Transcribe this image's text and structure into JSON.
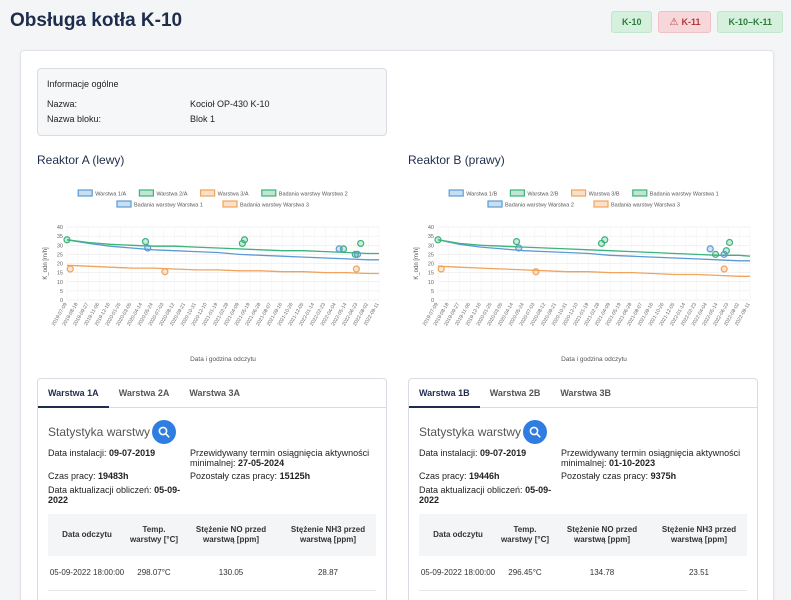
{
  "page_title": "Obsługa kotła K-10",
  "badges": [
    {
      "label": "K-10",
      "status": "ok",
      "color": "#2e7d3e"
    },
    {
      "label": "K-11",
      "status": "warning",
      "color": "#b23a3a"
    },
    {
      "label": "K-10–K-11",
      "status": "ok",
      "color": "#2e7d3e"
    }
  ],
  "info": {
    "title": "Informacje ogólne",
    "name_label": "Nazwa:",
    "name_value": "Kocioł OP-430 K-10",
    "block_label": "Nazwa bloku:",
    "block_value": "Blok 1"
  },
  "reactors": [
    {
      "title": "Reaktor A (lewy)",
      "chart_data": {
        "type": "line",
        "legend": [
          "Warstwa 1/A",
          "Warstwa 2/A",
          "Warstwa 3/A",
          "Badania warstwy Warstwa 2",
          "Badania warstwy Warstwa 1",
          "Badania warstwy Warstwa 3"
        ],
        "legend_placement": "top",
        "xlabel": "Data i godzina odczytu",
        "ylabel": "K_odn [m/h]",
        "ylim": [
          0,
          40
        ],
        "y_ticks": [
          0,
          5,
          10,
          15,
          20,
          25,
          30,
          35,
          40
        ],
        "grid": true,
        "x_ticks": [
          "2019-07-09",
          "2019-08-18",
          "2019-09-27",
          "2019-11-06",
          "2019-12-16",
          "2020-01-25",
          "2020-03-05",
          "2020-04-14",
          "2020-05-24",
          "2020-07-03",
          "2020-08-12",
          "2020-09-21",
          "2020-10-31",
          "2020-12-10",
          "2021-01-19",
          "2021-02-28",
          "2021-04-09",
          "2021-05-19",
          "2021-06-28",
          "2021-08-07",
          "2021-09-16",
          "2021-10-26",
          "2021-12-05",
          "2022-01-14",
          "2022-02-23",
          "2022-04-04",
          "2022-05-14",
          "2022-06-23",
          "2022-08-02",
          "2022-09-11"
        ],
        "colors": {
          "s1": "#5b9bd5",
          "s2": "#3cb37a",
          "s3": "#f0a35c"
        },
        "series": [
          {
            "name": "Warstwa 1/A",
            "color": "#5b9bd5",
            "x": [
              0,
              2,
              4,
              6,
              8,
              10,
              12,
              14,
              16,
              18,
              20,
              22,
              24,
              26,
              28,
              29
            ],
            "values": [
              33,
              31,
              29.5,
              28.5,
              27.5,
              27,
              26.5,
              26,
              25,
              24.5,
              24,
              23.5,
              23,
              22.5,
              22,
              22
            ]
          },
          {
            "name": "Warstwa 2/A",
            "color": "#3cb37a",
            "x": [
              0,
              2,
              4,
              6,
              8,
              10,
              12,
              14,
              16,
              18,
              20,
              22,
              24,
              26,
              28,
              29
            ],
            "values": [
              33,
              31.5,
              30.5,
              30,
              29.5,
              29.5,
              29,
              28.5,
              28,
              27.5,
              27,
              27,
              26.5,
              26,
              25.5,
              25.5
            ]
          },
          {
            "name": "Warstwa 3/A",
            "color": "#f0a35c",
            "x": [
              0,
              2,
              4,
              6,
              8,
              10,
              12,
              14,
              16,
              18,
              20,
              22,
              24,
              26,
              28,
              29
            ],
            "values": [
              19,
              18.5,
              18,
              17.5,
              17.5,
              17,
              16.5,
              16.5,
              16,
              16,
              15.5,
              15.5,
              15,
              15,
              14.5,
              14.5
            ]
          }
        ],
        "points": [
          {
            "series": "Badania warstwy Warstwa 2",
            "color": "#3cb37a",
            "x": [
              0,
              7.3,
              16.3,
              16.5,
              25.7,
              26.8,
              27.3
            ],
            "values": [
              33,
              32,
              31,
              33,
              28,
              25,
              31
            ]
          },
          {
            "series": "Badania warstwy Warstwa 1",
            "color": "#5b9bd5",
            "x": [
              7.5,
              25.3,
              27
            ],
            "values": [
              28.5,
              28,
              25
            ]
          },
          {
            "series": "Badania warstwy Warstwa 3",
            "color": "#f0a35c",
            "x": [
              0.3,
              9.1,
              26.9
            ],
            "values": [
              17,
              15.5,
              17
            ]
          }
        ]
      },
      "tabs": [
        "Warstwa 1A",
        "Warstwa 2A",
        "Warstwa 3A"
      ],
      "active_tab": 0,
      "stat_title": "Statystyka warstwy",
      "install_label": "Data instalacji:",
      "install_value": "09-07-2019",
      "predicted_label": "Przewidywany termin osiągnięcia aktywności minimalnej:",
      "predicted_value": "27-05-2024",
      "worktime_label": "Czas pracy:",
      "worktime_value": "19483h",
      "remaining_label": "Pozostały czas pracy:",
      "remaining_value": "15125h",
      "update_label": "Data aktualizacji obliczeń:",
      "update_value": "05-09-2022",
      "table": {
        "headers": [
          "Data odczytu",
          "Temp. warstwy [°C]",
          "Stężenie NO przed warstwą [ppm]",
          "Stężenie NH3 przed warstwą [ppm]"
        ],
        "rows": [
          [
            "05-09-2022 18:00:00",
            "298.07°C",
            "130.05",
            "28.87"
          ]
        ]
      }
    },
    {
      "title": "Reaktor B (prawy)",
      "chart_data": {
        "type": "line",
        "legend": [
          "Warstwa 1/B",
          "Warstwa 2/B",
          "Warstwa 3/B",
          "Badania warstwy Warstwa 1",
          "Badania warstwy Warstwa 2",
          "Badania warstwy Warstwa 3"
        ],
        "legend_placement": "top",
        "xlabel": "Data i godzina odczytu",
        "ylabel": "K_odn [m/h]",
        "ylim": [
          0,
          40
        ],
        "y_ticks": [
          0,
          5,
          10,
          15,
          20,
          25,
          30,
          35,
          40
        ],
        "grid": true,
        "x_ticks": [
          "2019-07-09",
          "2019-08-18",
          "2019-09-27",
          "2019-11-06",
          "2019-12-16",
          "2020-01-25",
          "2020-03-05",
          "2020-04-14",
          "2020-05-24",
          "2020-07-03",
          "2020-08-12",
          "2020-09-21",
          "2020-10-31",
          "2020-12-10",
          "2021-01-19",
          "2021-02-28",
          "2021-04-09",
          "2021-05-19",
          "2021-06-28",
          "2021-08-07",
          "2021-09-16",
          "2021-10-26",
          "2021-12-05",
          "2022-01-14",
          "2022-02-23",
          "2022-04-04",
          "2022-05-14",
          "2022-06-23",
          "2022-08-02",
          "2022-09-11"
        ],
        "colors": {
          "s1": "#5b9bd5",
          "s2": "#3cb37a",
          "s3": "#f0a35c"
        },
        "series": [
          {
            "name": "Warstwa 1/B",
            "color": "#5b9bd5",
            "x": [
              0,
              2,
              4,
              6,
              8,
              10,
              12,
              14,
              16,
              18,
              20,
              22,
              24,
              26,
              28,
              29
            ],
            "values": [
              33,
              30.5,
              29,
              28,
              27,
              26.5,
              26,
              25.5,
              24.5,
              24,
              23.5,
              23,
              22.5,
              22,
              21.5,
              21.5
            ]
          },
          {
            "name": "Warstwa 2/B",
            "color": "#3cb37a",
            "x": [
              0,
              2,
              4,
              6,
              8,
              10,
              12,
              14,
              16,
              18,
              20,
              22,
              24,
              26,
              28,
              29
            ],
            "values": [
              33,
              31,
              30,
              29.5,
              29,
              28.5,
              28,
              27.5,
              27,
              26.5,
              26,
              25.5,
              25,
              24.5,
              24.5,
              24
            ]
          },
          {
            "name": "Warstwa 3/B",
            "color": "#f0a35c",
            "x": [
              0,
              2,
              4,
              6,
              8,
              10,
              12,
              14,
              16,
              18,
              20,
              22,
              24,
              26,
              28,
              29
            ],
            "values": [
              18.5,
              18,
              17.5,
              17,
              16.5,
              16,
              15.5,
              15.5,
              15,
              15,
              14.5,
              14,
              14,
              13.5,
              13,
              13
            ]
          }
        ],
        "points": [
          {
            "series": "Badania warstwy Warstwa 2",
            "color": "#3cb37a",
            "x": [
              0,
              7.3,
              15.2,
              15.5,
              25.8,
              26.8,
              27.1
            ],
            "values": [
              33,
              32,
              31,
              33,
              25,
              27,
              31.5
            ]
          },
          {
            "series": "Badania warstwy Warstwa 1",
            "color": "#5b9bd5",
            "x": [
              7.5,
              25.3,
              26.6
            ],
            "values": [
              28.5,
              28,
              25
            ]
          },
          {
            "series": "Badania warstwy Warstwa 3",
            "color": "#f0a35c",
            "x": [
              0.3,
              9.1,
              26.6
            ],
            "values": [
              17,
              15.5,
              17
            ]
          }
        ]
      },
      "tabs": [
        "Warstwa 1B",
        "Warstwa 2B",
        "Warstwa 3B"
      ],
      "active_tab": 0,
      "stat_title": "Statystyka warstwy",
      "install_label": "Data instalacji:",
      "install_value": "09-07-2019",
      "predicted_label": "Przewidywany termin osiągnięcia aktywności minimalnej:",
      "predicted_value": "01-10-2023",
      "worktime_label": "Czas pracy:",
      "worktime_value": "19446h",
      "remaining_label": "Pozostały czas pracy:",
      "remaining_value": "9375h",
      "update_label": "Data aktualizacji obliczeń:",
      "update_value": "05-09-2022",
      "table": {
        "headers": [
          "Data odczytu",
          "Temp. warstwy [°C]",
          "Stężenie NO przed warstwą [ppm]",
          "Stężenie NH3 przed warstwą [ppm]"
        ],
        "rows": [
          [
            "05-09-2022 18:00:00",
            "296.45°C",
            "134.78",
            "23.51"
          ]
        ]
      }
    }
  ]
}
